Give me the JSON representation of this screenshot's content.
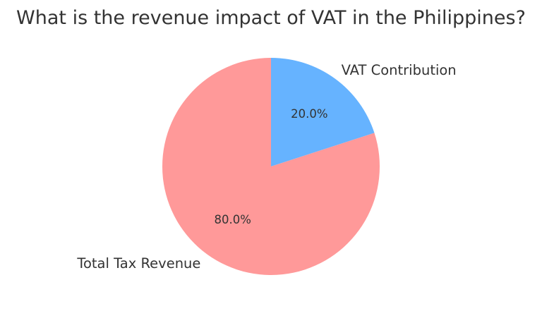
{
  "chart_data": {
    "type": "pie",
    "title": "What is the revenue impact of VAT in the Philippines?",
    "categories": [
      "Total Tax Revenue",
      "VAT Contribution"
    ],
    "values": [
      80,
      20
    ],
    "percent_labels": [
      "80.0%",
      "20.0%"
    ],
    "colors": [
      "#ff9999",
      "#66b3ff"
    ],
    "start_angle": 90,
    "direction": "counterclockwise"
  }
}
